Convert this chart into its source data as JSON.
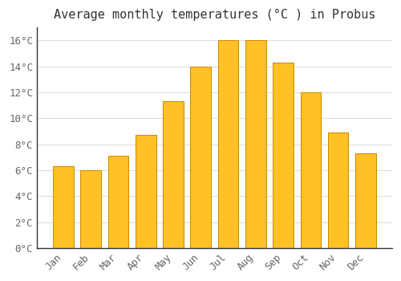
{
  "title": "Average monthly temperatures (°C ) in Probus",
  "months": [
    "Jan",
    "Feb",
    "Mar",
    "Apr",
    "May",
    "Jun",
    "Jul",
    "Aug",
    "Sep",
    "Oct",
    "Nov",
    "Dec"
  ],
  "values": [
    6.3,
    6.0,
    7.1,
    8.7,
    11.3,
    14.0,
    16.0,
    16.0,
    14.3,
    12.0,
    8.9,
    7.3
  ],
  "bar_color": "#FFC125",
  "bar_edge_color": "#CC8800",
  "background_color": "#FFFFFF",
  "grid_color": "#DDDDDD",
  "ytick_step": 2,
  "ymax": 17,
  "title_fontsize": 11,
  "tick_fontsize": 9,
  "font_family": "monospace",
  "tick_color": "#666666",
  "spine_color": "#333333"
}
